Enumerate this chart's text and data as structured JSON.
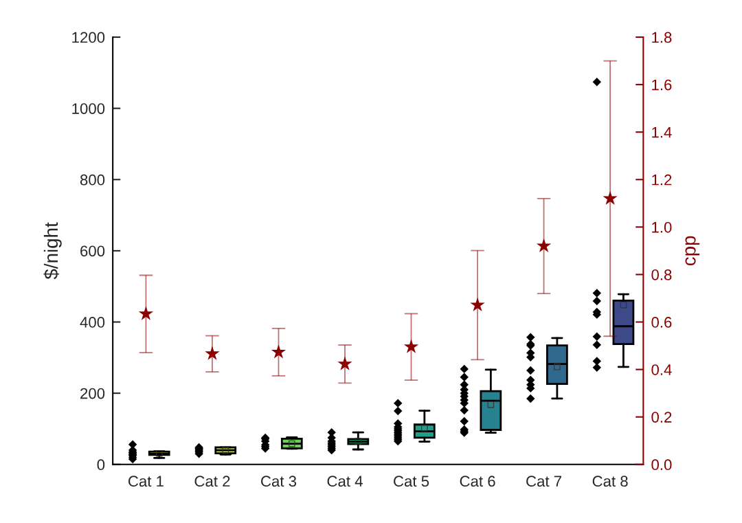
{
  "chart_data": {
    "type": "box",
    "ylabel": "$/night",
    "y2label": "cpp",
    "categories": [
      "Cat 1",
      "Cat 2",
      "Cat 3",
      "Cat 4",
      "Cat 5",
      "Cat 6",
      "Cat 7",
      "Cat 8"
    ],
    "ylim": [
      0,
      1200
    ],
    "yticks": [
      0,
      200,
      400,
      600,
      800,
      1000,
      1200
    ],
    "y2lim": [
      0,
      1.8
    ],
    "y2ticks": [
      {
        "value": 0,
        "label": "0.0"
      },
      {
        "value": 0.2,
        "label": "0.2"
      },
      {
        "value": 0.4,
        "label": "0.4"
      },
      {
        "value": 0.6,
        "label": "0.6"
      },
      {
        "value": 0.8,
        "label": "0.8"
      },
      {
        "value": 1.0,
        "label": "1.0"
      },
      {
        "value": 1.2,
        "label": "1.2"
      },
      {
        "value": 1.4,
        "label": "1.4"
      },
      {
        "value": 1.6,
        "label": "1.6"
      },
      {
        "value": 1.8,
        "label": "1.8"
      }
    ],
    "grid": false,
    "legend": false,
    "series": [
      {
        "colors": [
          "#fde725",
          "#c2df23",
          "#6ece58",
          "#35b779",
          "#1f9e89",
          "#26828e",
          "#31688e",
          "#3e4989"
        ],
        "boxes": [
          {
            "low": 18,
            "q1": 27,
            "median": 30,
            "q3": 36,
            "high": 37,
            "mean": 31
          },
          {
            "low": 28,
            "q1": 31,
            "median": 40,
            "q3": 48,
            "high": 48,
            "mean": 40
          },
          {
            "low": 44,
            "q1": 45,
            "median": 58,
            "q3": 72,
            "high": 76,
            "mean": 58
          },
          {
            "low": 42,
            "q1": 57,
            "median": 64,
            "q3": 71,
            "high": 90,
            "mean": 65
          },
          {
            "low": 64,
            "q1": 75,
            "median": 93,
            "q3": 112,
            "high": 151,
            "mean": 102
          },
          {
            "low": 89,
            "q1": 97,
            "median": 179,
            "q3": 206,
            "high": 266,
            "mean": 168
          },
          {
            "low": 185,
            "q1": 226,
            "median": 282,
            "q3": 334,
            "high": 355,
            "mean": 274
          },
          {
            "low": 274,
            "q1": 338,
            "median": 388,
            "q3": 460,
            "high": 478,
            "mean": 448
          }
        ]
      },
      {
        "type": "scatter",
        "color": "#000000",
        "marker": "diamond",
        "x": [
          "Cat 1",
          "Cat 1",
          "Cat 1",
          "Cat 1",
          "Cat 1",
          "Cat 1",
          "Cat 1",
          "Cat 1",
          "Cat 2",
          "Cat 2",
          "Cat 2",
          "Cat 2",
          "Cat 2",
          "Cat 2",
          "Cat 3",
          "Cat 3",
          "Cat 3",
          "Cat 3",
          "Cat 3",
          "Cat 3",
          "Cat 4",
          "Cat 4",
          "Cat 4",
          "Cat 4",
          "Cat 4",
          "Cat 4",
          "Cat 4",
          "Cat 4",
          "Cat 5",
          "Cat 5",
          "Cat 5",
          "Cat 5",
          "Cat 5",
          "Cat 5",
          "Cat 5",
          "Cat 5",
          "Cat 5",
          "Cat 5",
          "Cat 5",
          "Cat 5",
          "Cat 6",
          "Cat 6",
          "Cat 6",
          "Cat 6",
          "Cat 6",
          "Cat 6",
          "Cat 6",
          "Cat 6",
          "Cat 6",
          "Cat 6",
          "Cat 6",
          "Cat 6",
          "Cat 6",
          "Cat 7",
          "Cat 7",
          "Cat 7",
          "Cat 7",
          "Cat 7",
          "Cat 7",
          "Cat 7",
          "Cat 7",
          "Cat 7",
          "Cat 7",
          "Cat 8",
          "Cat 8",
          "Cat 8",
          "Cat 8",
          "Cat 8",
          "Cat 8",
          "Cat 8",
          "Cat 8",
          "Cat 8"
        ],
        "values": [
          56,
          40,
          35,
          32,
          28,
          25,
          20,
          15,
          48,
          45,
          42,
          38,
          35,
          30,
          75,
          72,
          65,
          55,
          50,
          45,
          90,
          75,
          65,
          60,
          55,
          50,
          45,
          40,
          172,
          150,
          115,
          105,
          100,
          95,
          90,
          85,
          80,
          75,
          70,
          65,
          268,
          245,
          224,
          210,
          200,
          191,
          181,
          172,
          152,
          121,
          98,
          93,
          89,
          357,
          338,
          334,
          313,
          301,
          264,
          237,
          224,
          214,
          185,
          1074,
          481,
          459,
          428,
          421,
          359,
          336,
          290,
          272
        ]
      },
      {
        "type": "scatter",
        "axis": "y2",
        "color": "#8b0000",
        "marker": "star",
        "values": [
          0.634,
          0.466,
          0.473,
          0.423,
          0.495,
          0.671,
          0.92,
          1.12
        ],
        "errors": [
          0.163,
          0.076,
          0.1,
          0.08,
          0.14,
          0.23,
          0.2,
          0.58
        ]
      }
    ]
  }
}
